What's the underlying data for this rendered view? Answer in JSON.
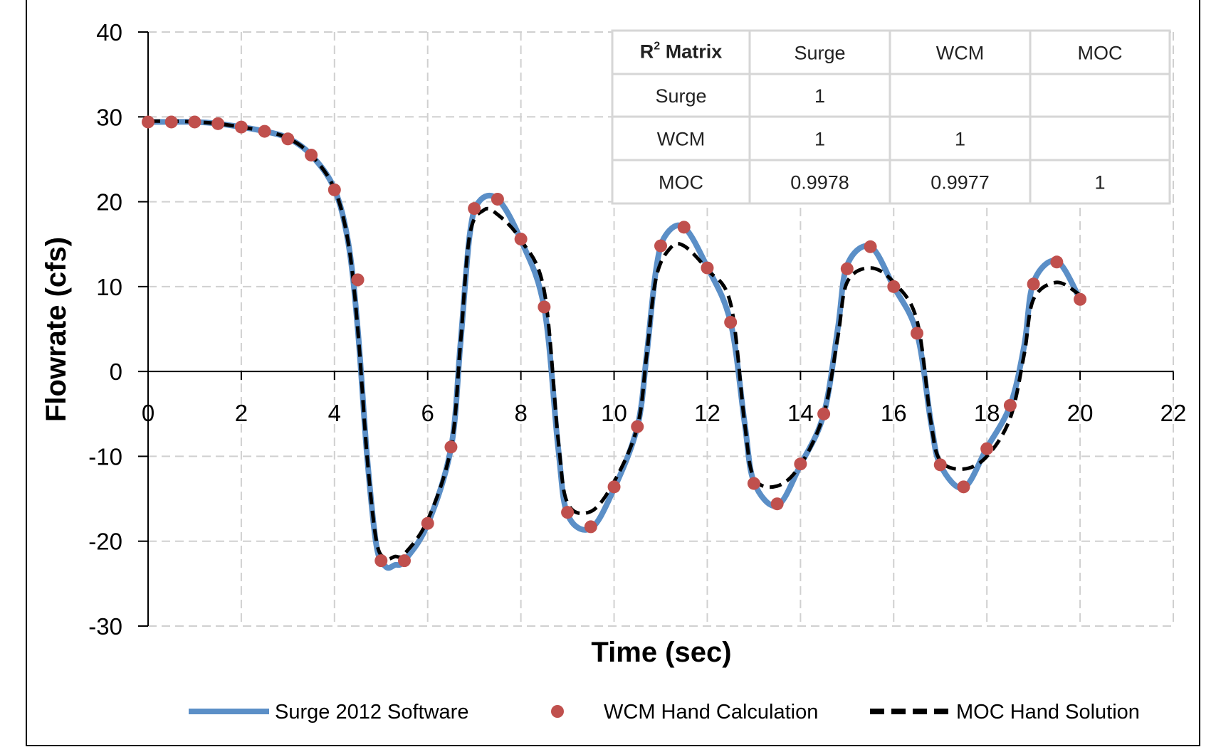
{
  "chart_data": {
    "type": "line",
    "xlabel": "Time (sec)",
    "ylabel": "Flowrate (cfs)",
    "xlim": [
      0,
      22
    ],
    "ylim": [
      -30,
      40
    ],
    "x_ticks": [
      0,
      2,
      4,
      6,
      8,
      10,
      12,
      14,
      16,
      18,
      20,
      22
    ],
    "y_ticks": [
      -30,
      -20,
      -10,
      0,
      10,
      20,
      30,
      40
    ],
    "grid": true,
    "legend_position": "bottom",
    "series": [
      {
        "name": "Surge 2012 Software",
        "style": "line",
        "color": "#5b8fc7",
        "x": [
          0,
          0.5,
          1,
          1.5,
          2,
          2.5,
          3,
          3.5,
          4,
          4.3,
          4.5,
          4.7,
          4.9,
          5.1,
          5.3,
          5.5,
          6,
          6.5,
          6.7,
          6.9,
          7.1,
          7.5,
          8,
          8.5,
          8.8,
          9.0,
          9.5,
          10,
          10.5,
          10.7,
          10.9,
          11.1,
          11.5,
          12,
          12.5,
          12.8,
          13.0,
          13.5,
          14,
          14.5,
          14.8,
          15.0,
          15.5,
          16,
          16.5,
          16.8,
          17.0,
          17.5,
          18,
          18.5,
          18.8,
          19.0,
          19.5,
          20
        ],
        "y": [
          29.4,
          29.4,
          29.4,
          29.2,
          28.8,
          28.3,
          27.5,
          25.5,
          21.5,
          15.0,
          5.0,
          -10.0,
          -20.5,
          -23.0,
          -22.8,
          -22.3,
          -18.0,
          -9.0,
          3.0,
          16.0,
          20.0,
          20.3,
          15.5,
          7.5,
          -9.0,
          -16.8,
          -18.5,
          -13.8,
          -6.5,
          2.0,
          12.0,
          16.0,
          17.0,
          12.3,
          5.8,
          -6.0,
          -13.0,
          -15.8,
          -11.0,
          -5.0,
          5.0,
          12.5,
          14.7,
          10.0,
          4.5,
          -6.0,
          -11.0,
          -13.7,
          -9.0,
          -4.0,
          3.0,
          10.5,
          13.0,
          8.5
        ]
      },
      {
        "name": "WCM Hand Calculation",
        "style": "markers",
        "color": "#c0504d",
        "x": [
          0,
          0.5,
          1,
          1.5,
          2,
          2.5,
          3,
          3.5,
          4,
          4.5,
          5,
          5.5,
          6,
          6.5,
          7,
          7.5,
          8,
          8.5,
          9,
          9.5,
          10,
          10.5,
          11,
          11.5,
          12,
          12.5,
          13,
          13.5,
          14,
          14.5,
          15,
          15.5,
          16,
          16.5,
          17,
          17.5,
          18,
          18.5,
          19,
          19.5,
          20
        ],
        "y": [
          29.4,
          29.4,
          29.4,
          29.2,
          28.8,
          28.3,
          27.4,
          25.5,
          21.4,
          10.8,
          -22.3,
          -22.3,
          -17.9,
          -8.9,
          19.2,
          20.3,
          15.6,
          7.6,
          -16.6,
          -18.3,
          -13.6,
          -6.5,
          14.8,
          17.0,
          12.2,
          5.8,
          -13.2,
          -15.6,
          -10.9,
          -5.0,
          12.1,
          14.7,
          10.0,
          4.5,
          -11.0,
          -13.6,
          -9.1,
          -4.0,
          10.3,
          12.9,
          8.5
        ]
      },
      {
        "name": "MOC Hand Solution",
        "style": "dashed",
        "color": "#000000",
        "x": [
          0,
          0.5,
          1,
          1.5,
          2,
          2.5,
          3,
          3.5,
          4,
          4.3,
          4.5,
          4.7,
          4.9,
          5.1,
          5.3,
          5.5,
          6,
          6.5,
          6.7,
          6.9,
          7.2,
          7.5,
          8,
          8.5,
          8.8,
          9.0,
          9.5,
          10,
          10.5,
          10.7,
          10.9,
          11.2,
          11.5,
          12,
          12.5,
          12.8,
          13.0,
          13.5,
          14,
          14.5,
          14.8,
          15.0,
          15.5,
          16,
          16.5,
          16.8,
          17.0,
          17.5,
          18,
          18.5,
          18.8,
          19.0,
          19.5,
          20
        ],
        "y": [
          29.5,
          29.5,
          29.4,
          29.2,
          28.8,
          28.3,
          27.5,
          25.5,
          21.5,
          15.0,
          5.0,
          -10.0,
          -20.0,
          -22.0,
          -21.8,
          -21.5,
          -17.5,
          -9.0,
          3.0,
          16.0,
          19.0,
          18.5,
          15.5,
          9.5,
          -8.0,
          -15.5,
          -16.5,
          -13.0,
          -6.5,
          2.0,
          11.0,
          14.5,
          14.8,
          12.0,
          8.0,
          -6.0,
          -12.5,
          -13.5,
          -11.0,
          -5.0,
          4.0,
          10.5,
          12.2,
          10.5,
          6.0,
          -6.0,
          -10.5,
          -11.5,
          -10.0,
          -5.5,
          2.0,
          8.5,
          10.5,
          9.0
        ]
      }
    ],
    "inset_table": {
      "headers": [
        "Matrix",
        "Surge",
        "WCM",
        "MOC"
      ],
      "header_prefix": "R",
      "header_superscript": "2",
      "rows": [
        {
          "label": "Surge",
          "cells": [
            "1",
            "",
            ""
          ]
        },
        {
          "label": "WCM",
          "cells": [
            "1",
            "1",
            ""
          ]
        },
        {
          "label": "MOC",
          "cells": [
            "0.9978",
            "0.9977",
            "1"
          ]
        }
      ]
    }
  }
}
